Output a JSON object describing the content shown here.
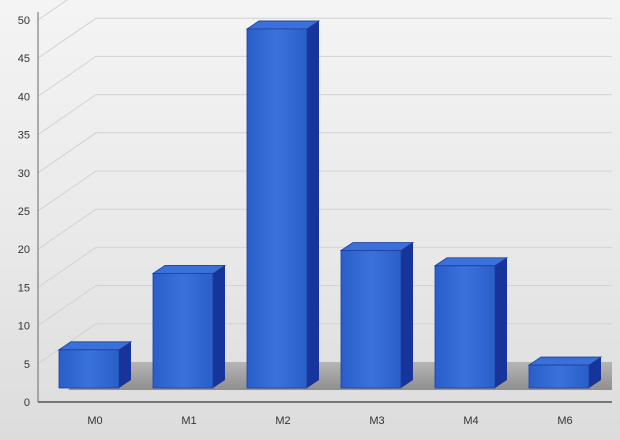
{
  "chart_data": {
    "type": "bar",
    "categories": [
      "M0",
      "M1",
      "M2",
      "M3",
      "M4",
      "M6"
    ],
    "values": [
      5,
      15,
      47,
      18,
      16,
      3
    ],
    "ylim": [
      0,
      50
    ],
    "yticks": [
      0,
      5,
      10,
      15,
      20,
      25,
      30,
      35,
      40,
      45,
      50
    ],
    "grid": true,
    "style": "3d",
    "bar_color": "#2f66d0",
    "bar_side_color": "#16349a",
    "bar_top_color": "#3b70da",
    "floor_color": "#9e9e9e"
  }
}
